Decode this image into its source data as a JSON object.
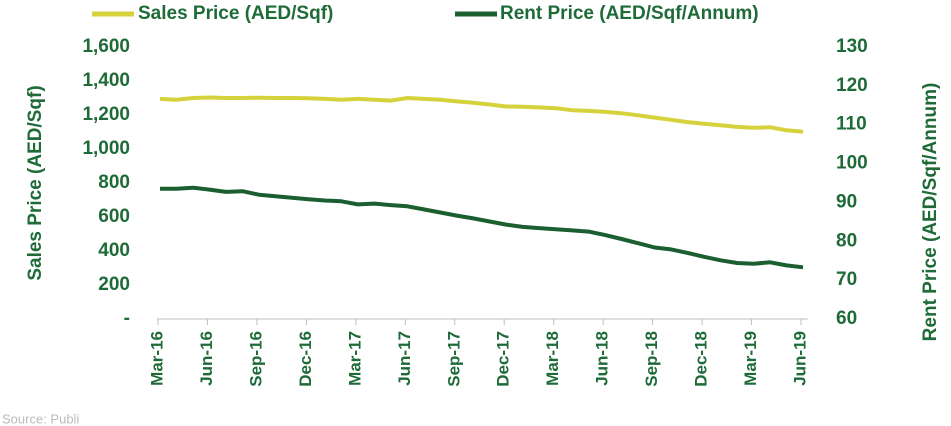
{
  "chart_data": {
    "type": "line",
    "y_label": "Sales Price (AED/Sqf)",
    "y2_label": "Rent Price (AED/Sqf/Annum)",
    "source": "Source: Publi",
    "categories": [
      "Mar-16",
      null,
      null,
      "Jun-16",
      null,
      null,
      "Sep-16",
      null,
      null,
      "Dec-16",
      null,
      null,
      "Mar-17",
      null,
      null,
      "Jun-17",
      null,
      null,
      "Sep-17",
      null,
      null,
      "Dec-17",
      null,
      null,
      "Mar-18",
      null,
      null,
      "Jun-18",
      null,
      null,
      "Sep-18",
      null,
      null,
      "Dec-18",
      null,
      null,
      "Mar-19",
      null,
      null,
      "Jun-19"
    ],
    "series": [
      {
        "name": "Sales Price (AED/Sqf)",
        "color": "#d5d23b",
        "values": [
          1295,
          1290,
          1300,
          1303,
          1300,
          1300,
          1302,
          1300,
          1300,
          1298,
          1295,
          1290,
          1295,
          1290,
          1285,
          1300,
          1295,
          1290,
          1280,
          1272,
          1262,
          1250,
          1248,
          1245,
          1240,
          1228,
          1224,
          1218,
          1210,
          1198,
          1185,
          1172,
          1158,
          1148,
          1140,
          1130,
          1125,
          1128,
          1110,
          1102
        ]
      },
      {
        "name": "Rent Price (AED/Sqf/Annum)",
        "color": "#1b5e2f",
        "axis": "y2",
        "values": [
          93.5,
          93.5,
          93.8,
          93.3,
          92.7,
          92.9,
          92.0,
          91.6,
          91.2,
          90.8,
          90.5,
          90.3,
          89.5,
          89.7,
          89.3,
          89.0,
          88.2,
          87.4,
          86.6,
          85.9,
          85.1,
          84.3,
          83.7,
          83.4,
          83.1,
          82.8,
          82.5,
          81.6,
          80.6,
          79.5,
          78.4,
          77.9,
          77.0,
          76.0,
          75.1,
          74.4,
          74.2,
          74.6,
          73.8,
          73.3
        ]
      }
    ],
    "ylim": [
      0,
      1600
    ],
    "yticks": [
      {
        "value": 0,
        "label": "-"
      },
      200,
      400,
      600,
      800,
      {
        "value": 1000,
        "label": "1,000"
      },
      {
        "value": 1200,
        "label": "1,200"
      },
      {
        "value": 1400,
        "label": "1,400"
      },
      {
        "value": 1600,
        "label": "1,600"
      }
    ],
    "y2lim": [
      60,
      130
    ],
    "y2ticks": [
      60,
      70,
      80,
      90,
      100,
      110,
      120,
      130
    ],
    "grid": false,
    "legend": "top"
  }
}
